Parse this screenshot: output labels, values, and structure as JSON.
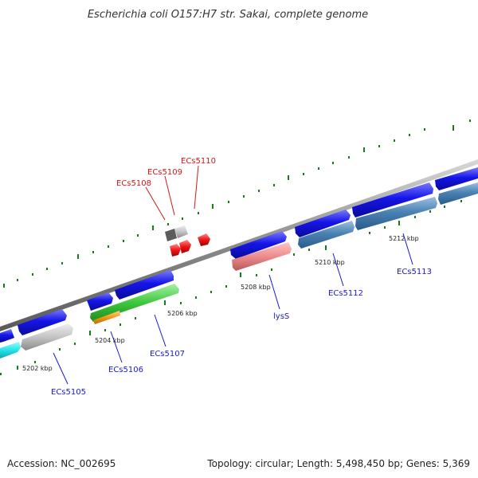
{
  "title": "Escherichia coli O157:H7 str. Sakai, complete genome",
  "footer": {
    "accession": "Accession: NC_002695",
    "summary": "Topology: circular; Length: 5,498,450 bp; Genes: 5,369"
  },
  "colors": {
    "forward_gene": "#1515e8",
    "reverse_gene": "#4a82b4",
    "grey_gene": "#c4c4c4",
    "cyan_gene": "#22e4ea",
    "green_gene": "#3cc83c",
    "orange_gene": "#f59a14",
    "pink_gene": "#ec8c8c",
    "red_feature": "#f01414",
    "backbone": "#8a8a8a",
    "tick": "#1a7a1a",
    "label_blue": "#1a1acc",
    "label_red": "#cc1a1a"
  },
  "scale_labels": [
    "5202 kbp",
    "5204 kbp",
    "5206 kbp",
    "5208 kbp",
    "5210 kbp",
    "5212 kbp"
  ],
  "gene_labels": {
    "ecs5105": "ECs5105",
    "ecs5106": "ECs5106",
    "ecs5107": "ECs5107",
    "lysS": "lysS",
    "ecs5112": "ECs5112",
    "ecs5113": "ECs5113",
    "ecs5108": "ECs5108",
    "ecs5109": "ECs5109",
    "ecs5110": "ECs5110"
  }
}
